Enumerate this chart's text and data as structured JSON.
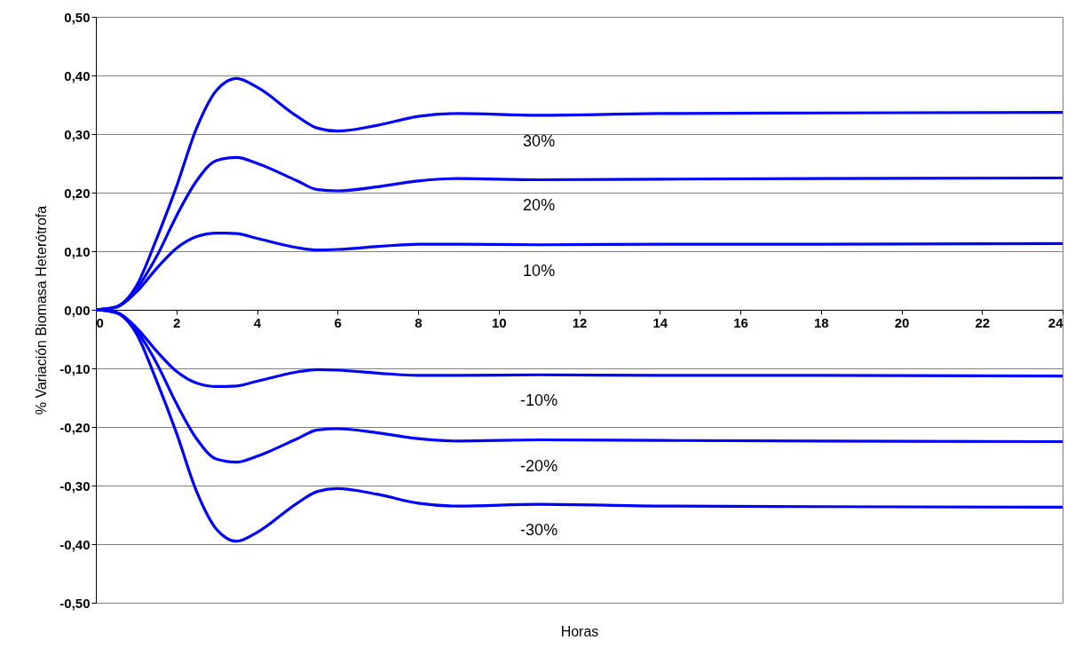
{
  "chart_data": {
    "type": "line",
    "xlabel": "Horas",
    "ylabel": "% Variación Biomasa Heterótrofa",
    "xlim": [
      0,
      24
    ],
    "ylim": [
      -0.5,
      0.5
    ],
    "xticks": [
      0,
      2,
      4,
      6,
      8,
      10,
      12,
      14,
      16,
      18,
      20,
      22,
      24
    ],
    "yticks": [
      {
        "value": -0.5,
        "label": "-0,50"
      },
      {
        "value": -0.4,
        "label": "-0,40"
      },
      {
        "value": -0.3,
        "label": "-0,30"
      },
      {
        "value": -0.2,
        "label": "-0,20"
      },
      {
        "value": -0.1,
        "label": "-0,10"
      },
      {
        "value": 0,
        "label": "0,00"
      },
      {
        "value": 0.1,
        "label": "0,10"
      },
      {
        "value": 0.2,
        "label": "0,20"
      },
      {
        "value": 0.3,
        "label": "0,30"
      },
      {
        "value": 0.4,
        "label": "0,40"
      },
      {
        "value": 0.5,
        "label": "0,50"
      }
    ],
    "x": [
      0,
      0.5,
      1,
      1.5,
      2,
      2.5,
      3,
      3.5,
      4,
      5,
      5.5,
      6,
      7,
      8,
      9,
      11,
      14,
      18,
      24
    ],
    "grid": "y",
    "marker": "none",
    "line_style": "solid",
    "series": [
      {
        "name": "30%",
        "color": "#0000ff",
        "values": [
          0,
          0.005,
          0.04,
          0.12,
          0.21,
          0.31,
          0.375,
          0.395,
          0.38,
          0.33,
          0.31,
          0.305,
          0.315,
          0.33,
          0.335,
          0.332,
          0.335,
          0.336,
          0.337
        ]
      },
      {
        "name": "20%",
        "color": "#0000ff",
        "values": [
          0,
          0.005,
          0.035,
          0.09,
          0.16,
          0.22,
          0.255,
          0.26,
          0.25,
          0.22,
          0.205,
          0.203,
          0.21,
          0.22,
          0.224,
          0.222,
          0.223,
          0.224,
          0.225
        ]
      },
      {
        "name": "10%",
        "color": "#0000ff",
        "values": [
          0,
          0.004,
          0.03,
          0.07,
          0.105,
          0.125,
          0.131,
          0.13,
          0.122,
          0.106,
          0.102,
          0.103,
          0.108,
          0.112,
          0.112,
          0.111,
          0.112,
          0.112,
          0.113
        ]
      },
      {
        "name": "-10%",
        "color": "#0000ff",
        "values": [
          0,
          -0.004,
          -0.03,
          -0.07,
          -0.105,
          -0.125,
          -0.131,
          -0.13,
          -0.122,
          -0.106,
          -0.102,
          -0.103,
          -0.108,
          -0.112,
          -0.112,
          -0.111,
          -0.112,
          -0.112,
          -0.113
        ]
      },
      {
        "name": "-20%",
        "color": "#0000ff",
        "values": [
          0,
          -0.005,
          -0.035,
          -0.09,
          -0.16,
          -0.22,
          -0.255,
          -0.26,
          -0.25,
          -0.22,
          -0.205,
          -0.203,
          -0.21,
          -0.22,
          -0.224,
          -0.222,
          -0.223,
          -0.224,
          -0.225
        ]
      },
      {
        "name": "-30%",
        "color": "#0000ff",
        "values": [
          0,
          -0.005,
          -0.04,
          -0.12,
          -0.21,
          -0.31,
          -0.375,
          -0.395,
          -0.38,
          -0.33,
          -0.31,
          -0.305,
          -0.315,
          -0.33,
          -0.335,
          -0.332,
          -0.335,
          -0.336,
          -0.337
        ]
      }
    ]
  }
}
